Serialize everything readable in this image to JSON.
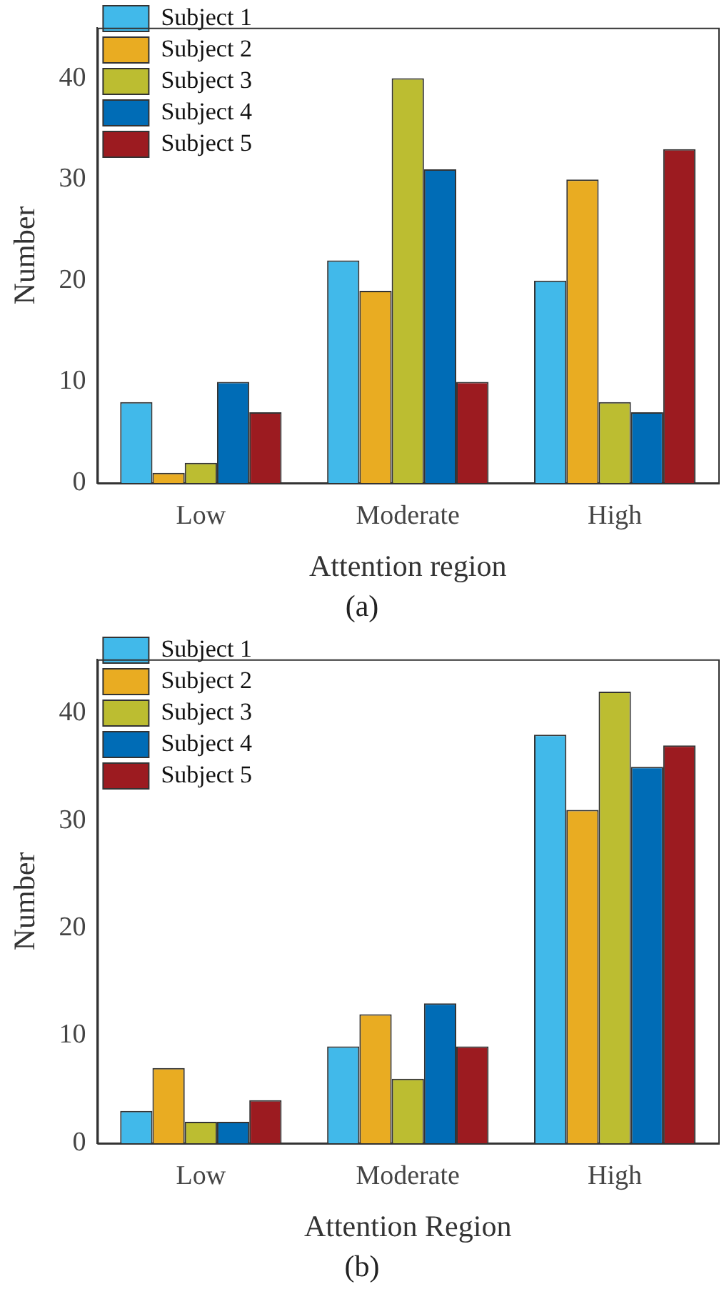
{
  "chart_data": [
    {
      "type": "bar",
      "categories": [
        "Low",
        "Moderate",
        "High"
      ],
      "xlabel": "Attention region",
      "ylabel": "Number",
      "ylim": [
        0,
        45
      ],
      "yticks": [
        0,
        10,
        20,
        30,
        40
      ],
      "legend": "top left",
      "annotations": [
        "(a)"
      ],
      "series": [
        {
          "name": "Subject 1",
          "color": "#41b9ea",
          "values": [
            8,
            22,
            20
          ]
        },
        {
          "name": "Subject 2",
          "color": "#e9ac22",
          "values": [
            1,
            19,
            30
          ]
        },
        {
          "name": "Subject 3",
          "color": "#bcbd31",
          "values": [
            2,
            40,
            8
          ]
        },
        {
          "name": "Subject 4",
          "color": "#006cb6",
          "values": [
            10,
            31,
            7
          ]
        },
        {
          "name": "Subject 5",
          "color": "#9c1b20",
          "values": [
            7,
            10,
            33
          ]
        }
      ]
    },
    {
      "type": "bar",
      "categories": [
        "Low",
        "Moderate",
        "High"
      ],
      "xlabel": "Attention Region",
      "ylabel": "Number",
      "ylim": [
        0,
        45
      ],
      "yticks": [
        0,
        10,
        20,
        30,
        40
      ],
      "legend": "top left",
      "annotations": [
        "(b)"
      ],
      "series": [
        {
          "name": "Subject 1",
          "color": "#41b9ea",
          "values": [
            3,
            9,
            38
          ]
        },
        {
          "name": "Subject 2",
          "color": "#e9ac22",
          "values": [
            7,
            12,
            31
          ]
        },
        {
          "name": "Subject 3",
          "color": "#bcbd31",
          "values": [
            2,
            6,
            42
          ]
        },
        {
          "name": "Subject 4",
          "color": "#006cb6",
          "values": [
            2,
            13,
            35
          ]
        },
        {
          "name": "Subject 5",
          "color": "#9c1b20",
          "values": [
            4,
            9,
            37
          ]
        }
      ]
    }
  ]
}
